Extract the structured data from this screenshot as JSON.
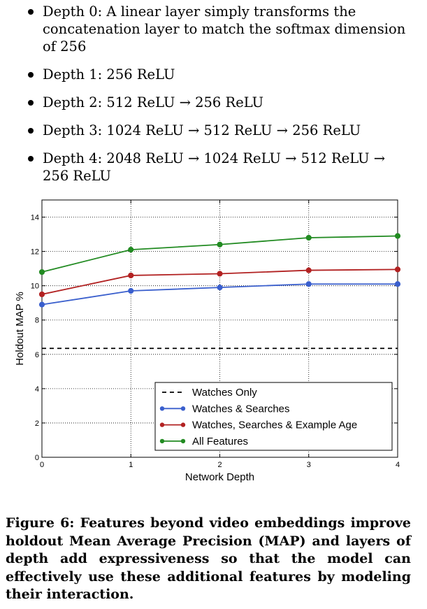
{
  "bullets": [
    "Depth 0: A linear layer simply transforms the concatenation layer to match the softmax dimension of 256",
    "Depth 1: 256 ReLU",
    "Depth 2: 512 ReLU → 256 ReLU",
    "Depth 3: 1024 ReLU → 512 ReLU → 256 ReLU",
    "Depth 4: 2048 ReLU → 1024 ReLU → 512 ReLU → 256 ReLU"
  ],
  "chart_data": {
    "type": "line",
    "xlabel": "Network Depth",
    "ylabel": "Holdout MAP %",
    "x": [
      0,
      1,
      2,
      3,
      4
    ],
    "xlim": [
      0,
      4
    ],
    "ylim": [
      0,
      15
    ],
    "xticks": [
      "0",
      "1",
      "2",
      "3",
      "4"
    ],
    "yticks": [
      "0",
      "2",
      "4",
      "6",
      "8",
      "10",
      "12",
      "14"
    ],
    "grid": true,
    "legend_position": "lower-right",
    "series": [
      {
        "name": "Watches Only",
        "style": "dashed",
        "color": "#000000",
        "values": [
          6.35,
          6.35,
          6.35,
          6.35,
          6.35
        ],
        "markers": false
      },
      {
        "name": "Watches & Searches",
        "style": "solid",
        "color": "#3a5fcd",
        "values": [
          8.9,
          9.7,
          9.9,
          10.1,
          10.1
        ],
        "markers": true
      },
      {
        "name": "Watches, Searches & Example Age",
        "style": "solid",
        "color": "#b22222",
        "values": [
          9.5,
          10.6,
          10.7,
          10.9,
          10.95
        ],
        "markers": true
      },
      {
        "name": "All Features",
        "style": "solid",
        "color": "#228b22",
        "values": [
          10.8,
          12.1,
          12.4,
          12.8,
          12.9
        ],
        "markers": true
      }
    ]
  },
  "caption": "Figure 6: Features beyond video embeddings improve holdout Mean Average Precision (MAP) and layers of depth add expressiveness so that the model can effectively use these additional features by modeling their interaction."
}
